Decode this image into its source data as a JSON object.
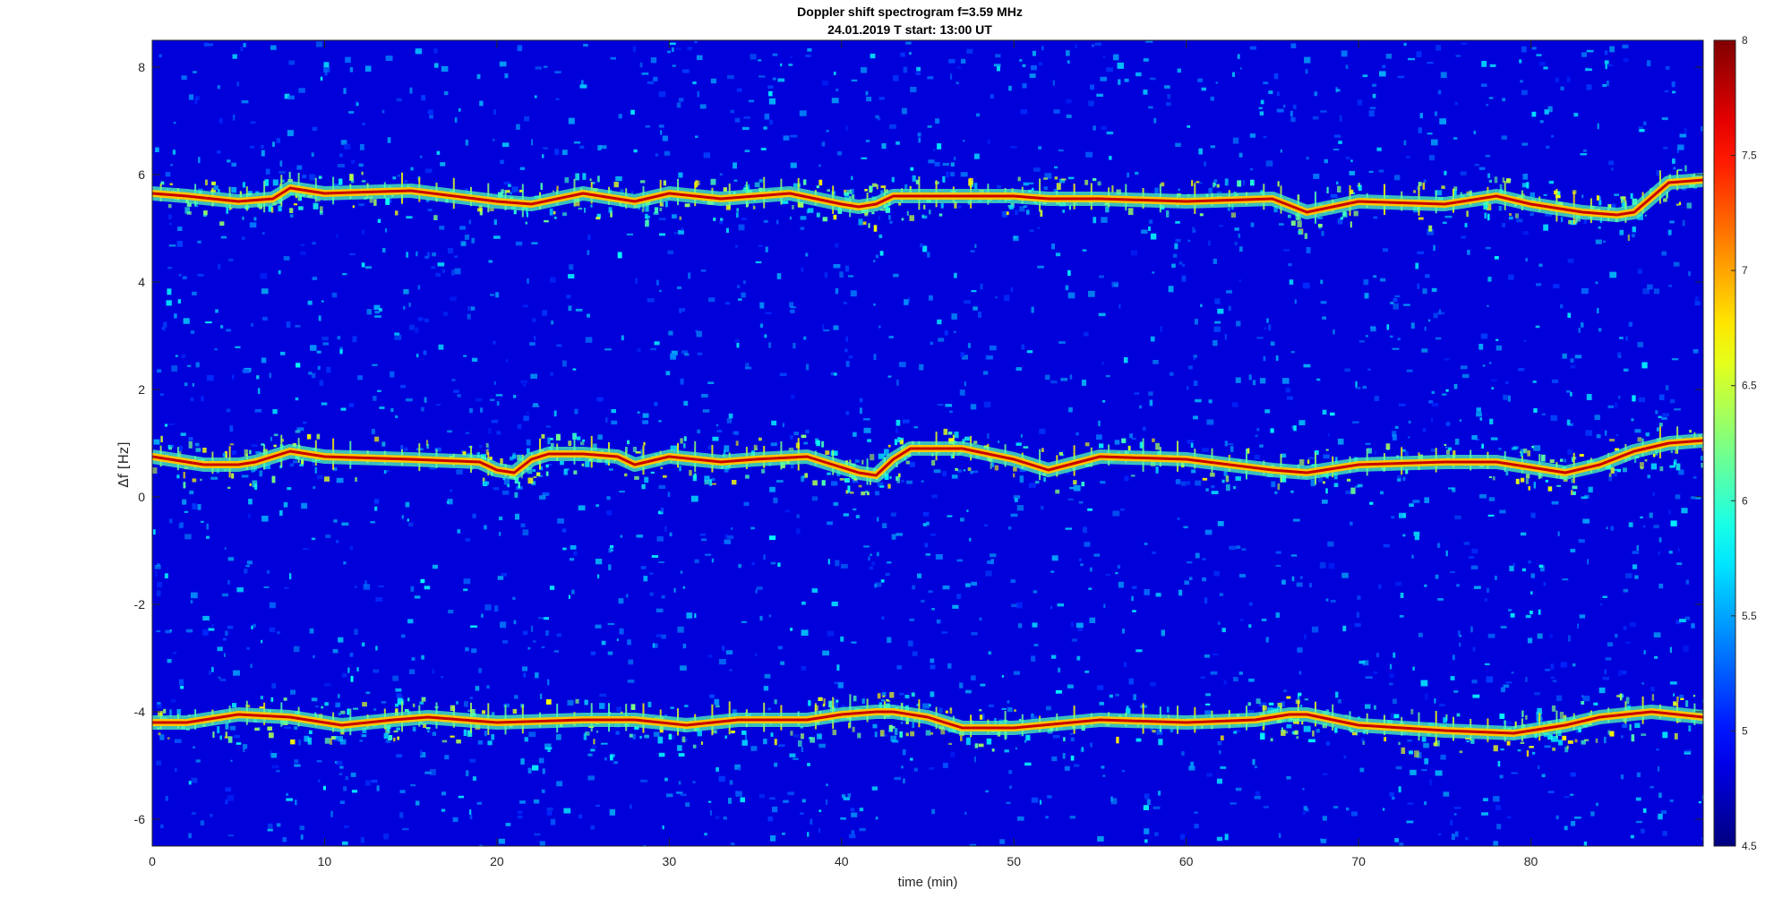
{
  "chart_data": {
    "type": "heatmap",
    "title": "Doppler shift spectrogram f=3.59 MHz",
    "subtitle": "24.01.2019   T start: 13:00 UT",
    "xlabel": "time (min)",
    "ylabel": "Δf [Hz]",
    "xlim": [
      0,
      90
    ],
    "ylim": [
      -6.5,
      8.5
    ],
    "xticks": [
      "0",
      "10",
      "20",
      "30",
      "40",
      "50",
      "60",
      "70",
      "80"
    ],
    "yticks": [
      "-6",
      "-4",
      "-2",
      "0",
      "2",
      "4",
      "6",
      "8"
    ],
    "colorbar": {
      "clim": [
        4.5,
        8
      ],
      "ticks": [
        "4.5",
        "5",
        "5.5",
        "6",
        "6.5",
        "7",
        "7.5",
        "8"
      ],
      "colormap": "jet"
    },
    "series": [
      {
        "x": [
          0,
          2,
          5,
          7,
          8,
          10,
          15,
          20,
          22,
          25,
          28,
          30,
          33,
          37,
          40,
          41,
          42,
          43,
          45,
          50,
          52,
          55,
          60,
          65,
          67,
          70,
          75,
          78,
          80,
          83,
          85,
          86,
          88,
          90
        ],
        "y": [
          5.65,
          5.6,
          5.5,
          5.55,
          5.75,
          5.65,
          5.7,
          5.5,
          5.45,
          5.65,
          5.5,
          5.65,
          5.55,
          5.65,
          5.45,
          5.4,
          5.45,
          5.6,
          5.6,
          5.6,
          5.55,
          5.55,
          5.5,
          5.55,
          5.3,
          5.5,
          5.45,
          5.6,
          5.45,
          5.3,
          5.25,
          5.3,
          5.85,
          5.9
        ]
      },
      {
        "x": [
          0,
          3,
          5,
          6,
          8,
          10,
          15,
          19,
          20,
          21,
          22,
          23,
          25,
          27,
          28,
          30,
          33,
          35,
          38,
          40,
          41,
          42,
          43,
          44,
          47,
          50,
          52,
          55,
          60,
          65,
          67,
          70,
          75,
          78,
          80,
          82,
          84,
          86,
          88,
          90
        ],
        "y": [
          0.75,
          0.6,
          0.6,
          0.65,
          0.85,
          0.75,
          0.7,
          0.65,
          0.5,
          0.45,
          0.7,
          0.8,
          0.8,
          0.75,
          0.6,
          0.75,
          0.65,
          0.7,
          0.75,
          0.55,
          0.45,
          0.4,
          0.7,
          0.9,
          0.9,
          0.7,
          0.5,
          0.75,
          0.7,
          0.5,
          0.45,
          0.6,
          0.65,
          0.65,
          0.55,
          0.45,
          0.6,
          0.85,
          1.0,
          1.05
        ]
      },
      {
        "x": [
          0,
          2,
          5,
          8,
          11,
          14,
          16,
          20,
          25,
          28,
          31,
          34,
          38,
          40,
          42,
          43,
          45,
          47,
          50,
          55,
          60,
          64,
          66,
          67,
          70,
          75,
          79,
          80,
          82,
          84,
          87,
          90
        ],
        "y": [
          -4.2,
          -4.2,
          -4.05,
          -4.1,
          -4.25,
          -4.15,
          -4.1,
          -4.2,
          -4.15,
          -4.15,
          -4.25,
          -4.15,
          -4.15,
          -4.05,
          -4.0,
          -4.0,
          -4.1,
          -4.3,
          -4.3,
          -4.15,
          -4.2,
          -4.15,
          -4.05,
          -4.05,
          -4.25,
          -4.35,
          -4.4,
          -4.35,
          -4.25,
          -4.1,
          -4.0,
          -4.1
        ]
      }
    ]
  }
}
